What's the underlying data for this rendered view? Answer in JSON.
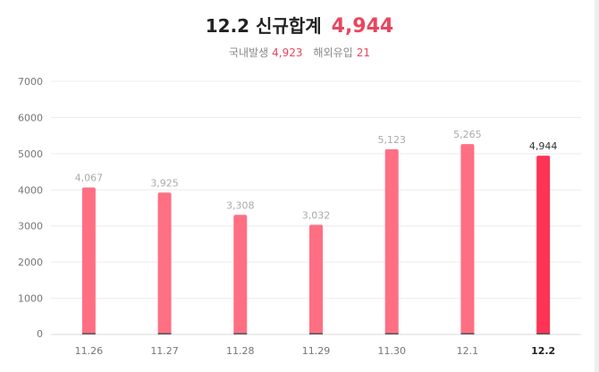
{
  "header": {
    "date_label": "12.2 신규합계",
    "total": "4,944",
    "domestic_label": "국내발생",
    "domestic_value": "4,923",
    "overseas_label": "해외유입",
    "overseas_value": "21"
  },
  "colors": {
    "bar": "#ff6f84",
    "bar_highlight": "#ff3355",
    "accent": "#e8465f"
  },
  "chart_data": {
    "type": "bar",
    "categories": [
      "11.26",
      "11.27",
      "11.28",
      "11.29",
      "11.30",
      "12.1",
      "12.2"
    ],
    "values": [
      4067,
      3925,
      3308,
      3032,
      5123,
      5265,
      4944
    ],
    "value_labels": [
      "4,067",
      "3,925",
      "3,308",
      "3,032",
      "5,123",
      "5,265",
      "4,944"
    ],
    "highlight_index": 6,
    "yticks": [
      0,
      1000,
      2000,
      3000,
      4000,
      5000,
      6000,
      7000
    ],
    "ylim": [
      0,
      7000
    ],
    "grid": true,
    "legend": "none"
  }
}
